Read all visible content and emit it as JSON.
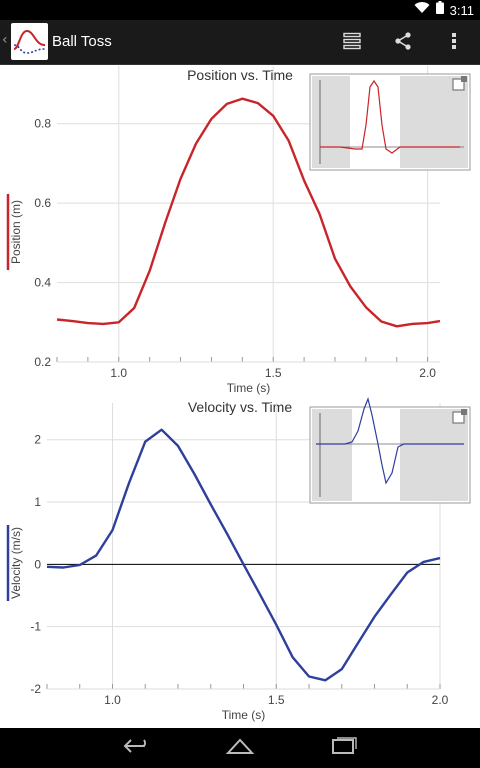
{
  "status_bar": {
    "time": "3:11",
    "icons": [
      "wifi-icon",
      "battery-icon"
    ]
  },
  "action_bar": {
    "title": "Ball Toss",
    "actions": [
      "data-table-icon",
      "share-icon",
      "overflow-menu-icon"
    ]
  },
  "colors": {
    "position": "#c8252a",
    "velocity": "#2e3f9c",
    "action_bar": "#1a1a1a",
    "zero_line": "#000000"
  },
  "chart_data": [
    {
      "type": "line",
      "title": "Position vs. Time",
      "xlabel": "Time (s)",
      "ylabel": "Position (m)",
      "xlim": [
        0.8,
        2.04
      ],
      "ylim": [
        0.2,
        0.9
      ],
      "xticks": [
        "1.0",
        "1.5",
        "2.0"
      ],
      "yticks": [
        "0.2",
        "0.4",
        "0.6",
        "0.8"
      ],
      "legend": "left-vertical",
      "series": [
        {
          "name": "Position (m)",
          "x": [
            0.8,
            0.85,
            0.9,
            0.95,
            1.0,
            1.05,
            1.1,
            1.15,
            1.2,
            1.25,
            1.3,
            1.35,
            1.4,
            1.45,
            1.5,
            1.55,
            1.6,
            1.65,
            1.7,
            1.75,
            1.8,
            1.85,
            1.9,
            1.95,
            2.0,
            2.04
          ],
          "y": [
            0.307,
            0.303,
            0.298,
            0.296,
            0.3,
            0.336,
            0.43,
            0.55,
            0.661,
            0.75,
            0.812,
            0.85,
            0.863,
            0.852,
            0.82,
            0.757,
            0.657,
            0.573,
            0.46,
            0.39,
            0.338,
            0.302,
            0.29,
            0.296,
            0.298,
            0.303
          ]
        }
      ],
      "thumbnail": "position-thumbnail"
    },
    {
      "type": "line",
      "title": "Velocity vs. Time",
      "xlabel": "Time (s)",
      "ylabel": "Velocity (m/s)",
      "xlim": [
        0.8,
        2.0
      ],
      "ylim": [
        -2,
        2.3
      ],
      "xticks": [
        "1.0",
        "1.5",
        "2.0"
      ],
      "yticks": [
        "-2",
        "-1",
        "0",
        "1",
        "2"
      ],
      "legend": "left-vertical",
      "zero_line": true,
      "series": [
        {
          "name": "Velocity (m/s)",
          "x": [
            0.8,
            0.85,
            0.9,
            0.95,
            1.0,
            1.05,
            1.1,
            1.15,
            1.2,
            1.25,
            1.3,
            1.35,
            1.4,
            1.45,
            1.5,
            1.55,
            1.6,
            1.65,
            1.7,
            1.75,
            1.8,
            1.85,
            1.9,
            1.95,
            2.0
          ],
          "y": [
            -0.04,
            -0.05,
            -0.01,
            0.14,
            0.55,
            1.3,
            1.97,
            2.16,
            1.9,
            1.45,
            0.96,
            0.49,
            0.0,
            -0.48,
            -0.97,
            -1.49,
            -1.8,
            -1.86,
            -1.68,
            -1.26,
            -0.84,
            -0.48,
            -0.13,
            0.04,
            0.1
          ]
        }
      ],
      "thumbnail": "velocity-thumbnail"
    }
  ]
}
